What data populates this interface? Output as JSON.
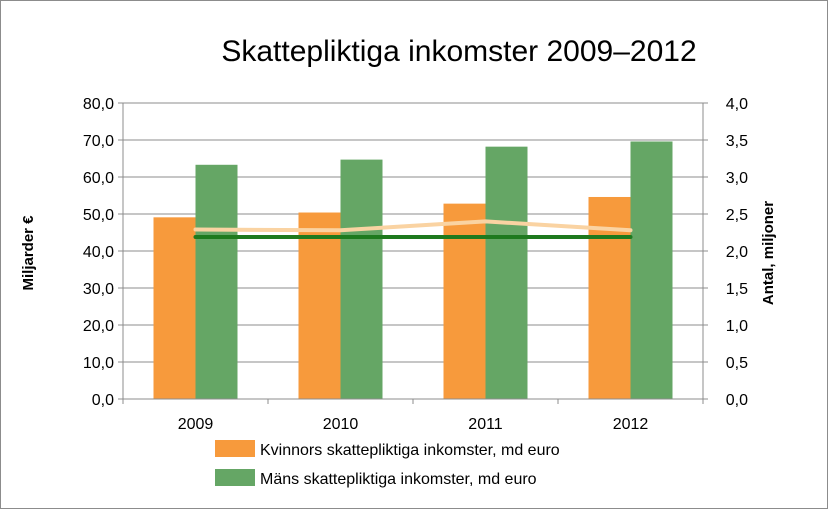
{
  "chart_data": {
    "type": "bar",
    "title": "Skattepliktiga inkomster 2009–2012",
    "categories": [
      "2009",
      "2010",
      "2011",
      "2012"
    ],
    "ylabel": "Miljarder €",
    "y2label": "Antal, miljoner",
    "ylim": [
      0,
      80
    ],
    "y2lim": [
      0,
      4
    ],
    "yticks": [
      "0,0",
      "10,0",
      "20,0",
      "30,0",
      "40,0",
      "50,0",
      "60,0",
      "70,0",
      "80,0"
    ],
    "y2ticks": [
      "0,0",
      "0,5",
      "1,0",
      "1,5",
      "2,0",
      "2,5",
      "3,0",
      "3,5",
      "4,0"
    ],
    "grid": true,
    "legend_position": "bottom",
    "series": [
      {
        "name": "Kvinnors skattepliktiga inkomster, md euro",
        "type": "bar",
        "axis": "left",
        "color": "#f79a3c",
        "values": [
          49.1,
          50.4,
          52.8,
          54.6
        ]
      },
      {
        "name": "Mäns skattepliktiga inkomster, md euro",
        "type": "bar",
        "axis": "left",
        "color": "#65a665",
        "values": [
          63.3,
          64.7,
          68.2,
          69.6
        ]
      },
      {
        "type": "line",
        "axis": "right",
        "color": "#fad3a2",
        "values": [
          2.29,
          2.28,
          2.4,
          2.28
        ]
      },
      {
        "type": "line",
        "axis": "right",
        "color": "#1e7a1e",
        "values": [
          2.19,
          2.19,
          2.19,
          2.19
        ]
      }
    ]
  }
}
